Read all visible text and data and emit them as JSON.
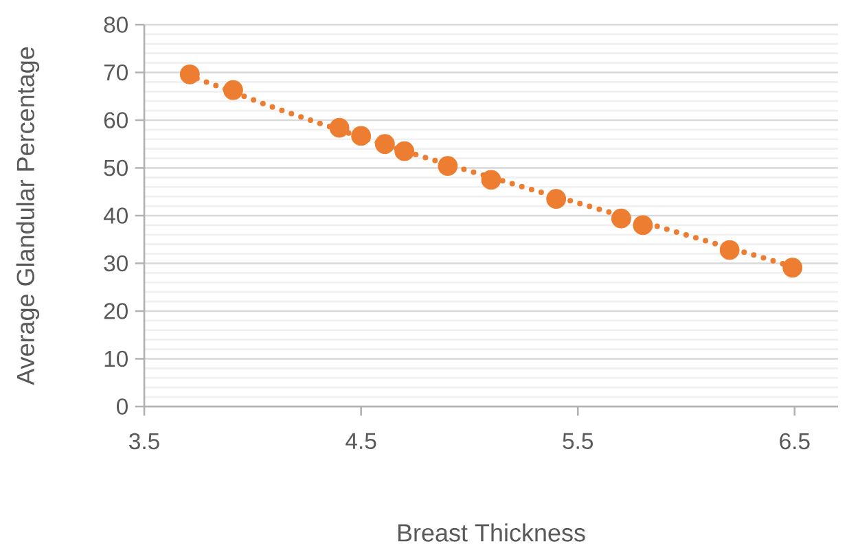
{
  "chart_data": {
    "type": "scatter",
    "xlabel": "Breast Thickness",
    "ylabel": "Average Glandular Percentage",
    "xlim": [
      3.5,
      6.7
    ],
    "xticks": [
      3.5,
      4.5,
      5.5,
      6.5
    ],
    "ylim": [
      0,
      80
    ],
    "yticks": [
      0,
      10,
      20,
      30,
      40,
      50,
      60,
      70,
      80
    ],
    "grid": "y",
    "series": [
      {
        "color": "#ed7d31",
        "marker": "circle",
        "x": [
          3.71,
          3.91,
          4.4,
          4.5,
          4.61,
          4.7,
          4.9,
          5.1,
          5.4,
          5.7,
          5.8,
          6.2,
          6.49
        ],
        "values": [
          69.6,
          66.3,
          58.4,
          56.7,
          55.0,
          53.5,
          50.4,
          47.5,
          43.5,
          39.4,
          38.0,
          32.8,
          29.1
        ]
      },
      {
        "type": "line",
        "color": "#ed7d31",
        "marker": "none",
        "line_style": "dotted",
        "x": [
          3.7,
          4.1,
          4.5,
          4.9,
          5.3,
          5.7,
          6.1,
          6.5
        ],
        "values": [
          69.5,
          62.6,
          56.4,
          50.7,
          45.3,
          40.0,
          34.6,
          29.2
        ]
      }
    ]
  }
}
